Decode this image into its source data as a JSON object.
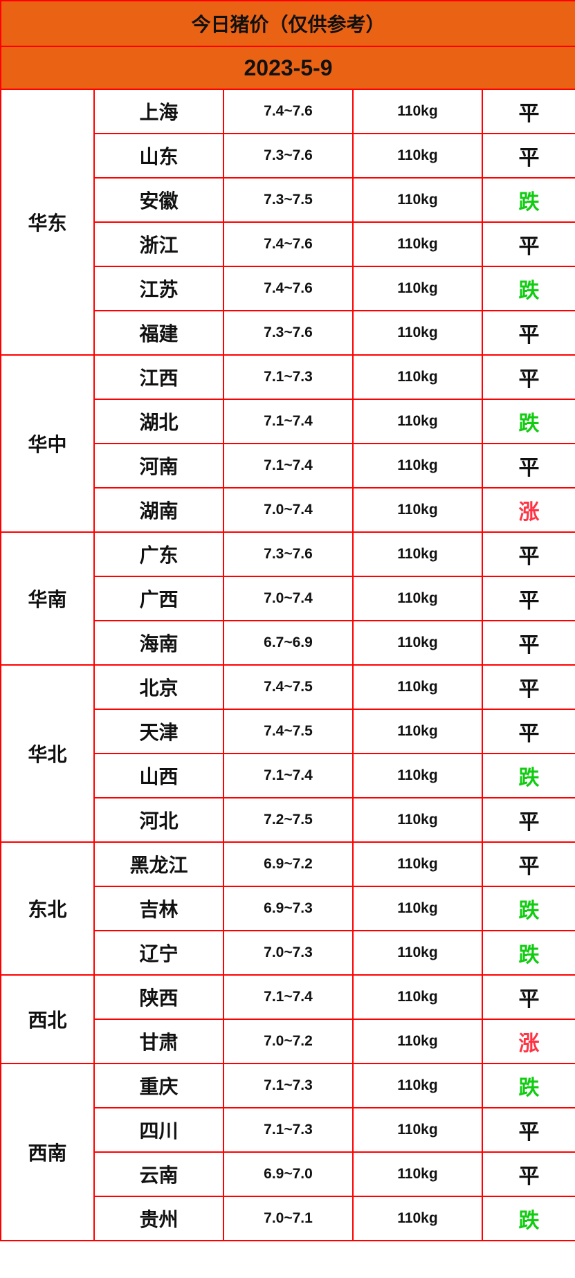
{
  "title": "今日猪价（仅供参考）",
  "date": "2023-5-9",
  "colors": {
    "header_bg": "#ea6315",
    "border": "#ff0000",
    "down": "#11cc11",
    "up": "#ff3344",
    "flat": "#111111"
  },
  "regions": [
    {
      "name": "华东",
      "rows": [
        {
          "province": "上海",
          "price": "7.4~7.6",
          "weight": "110kg",
          "trend": "平"
        },
        {
          "province": "山东",
          "price": "7.3~7.6",
          "weight": "110kg",
          "trend": "平"
        },
        {
          "province": "安徽",
          "price": "7.3~7.5",
          "weight": "110kg",
          "trend": "跌"
        },
        {
          "province": "浙江",
          "price": "7.4~7.6",
          "weight": "110kg",
          "trend": "平"
        },
        {
          "province": "江苏",
          "price": "7.4~7.6",
          "weight": "110kg",
          "trend": "跌"
        },
        {
          "province": "福建",
          "price": "7.3~7.6",
          "weight": "110kg",
          "trend": "平"
        }
      ]
    },
    {
      "name": "华中",
      "rows": [
        {
          "province": "江西",
          "price": "7.1~7.3",
          "weight": "110kg",
          "trend": "平"
        },
        {
          "province": "湖北",
          "price": "7.1~7.4",
          "weight": "110kg",
          "trend": "跌"
        },
        {
          "province": "河南",
          "price": "7.1~7.4",
          "weight": "110kg",
          "trend": "平"
        },
        {
          "province": "湖南",
          "price": "7.0~7.4",
          "weight": "110kg",
          "trend": "涨"
        }
      ]
    },
    {
      "name": "华南",
      "rows": [
        {
          "province": "广东",
          "price": "7.3~7.6",
          "weight": "110kg",
          "trend": "平"
        },
        {
          "province": "广西",
          "price": "7.0~7.4",
          "weight": "110kg",
          "trend": "平"
        },
        {
          "province": "海南",
          "price": "6.7~6.9",
          "weight": "110kg",
          "trend": "平"
        }
      ]
    },
    {
      "name": "华北",
      "rows": [
        {
          "province": "北京",
          "price": "7.4~7.5",
          "weight": "110kg",
          "trend": "平"
        },
        {
          "province": "天津",
          "price": "7.4~7.5",
          "weight": "110kg",
          "trend": "平"
        },
        {
          "province": "山西",
          "price": "7.1~7.4",
          "weight": "110kg",
          "trend": "跌"
        },
        {
          "province": "河北",
          "price": "7.2~7.5",
          "weight": "110kg",
          "trend": "平"
        }
      ]
    },
    {
      "name": "东北",
      "rows": [
        {
          "province": "黑龙江",
          "price": "6.9~7.2",
          "weight": "110kg",
          "trend": "平"
        },
        {
          "province": "吉林",
          "price": "6.9~7.3",
          "weight": "110kg",
          "trend": "跌"
        },
        {
          "province": "辽宁",
          "price": "7.0~7.3",
          "weight": "110kg",
          "trend": "跌"
        }
      ]
    },
    {
      "name": "西北",
      "rows": [
        {
          "province": "陕西",
          "price": "7.1~7.4",
          "weight": "110kg",
          "trend": "平"
        },
        {
          "province": "甘肃",
          "price": "7.0~7.2",
          "weight": "110kg",
          "trend": "涨"
        }
      ]
    },
    {
      "name": "西南",
      "rows": [
        {
          "province": "重庆",
          "price": "7.1~7.3",
          "weight": "110kg",
          "trend": "跌"
        },
        {
          "province": "四川",
          "price": "7.1~7.3",
          "weight": "110kg",
          "trend": "平"
        },
        {
          "province": "云南",
          "price": "6.9~7.0",
          "weight": "110kg",
          "trend": "平"
        },
        {
          "province": "贵州",
          "price": "7.0~7.1",
          "weight": "110kg",
          "trend": "跌"
        }
      ]
    }
  ]
}
